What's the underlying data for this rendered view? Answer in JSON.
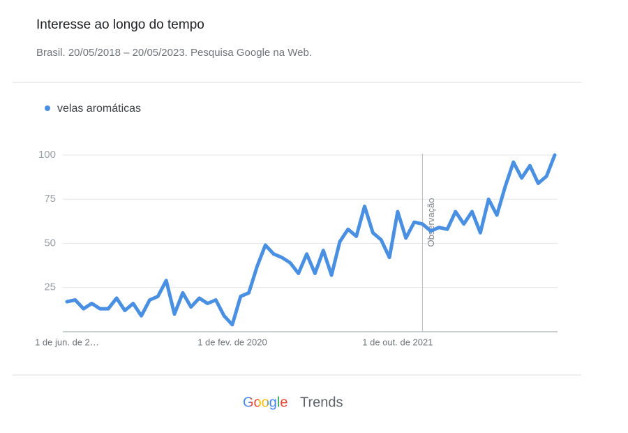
{
  "header": {
    "title": "Interesse ao longo do tempo",
    "subtitle": "Brasil. 20/05/2018 – 20/05/2023. Pesquisa Google na Web."
  },
  "chart_data": {
    "type": "line",
    "categories": [
      "1 de jun. de 2…",
      null,
      null,
      null,
      null,
      null,
      null,
      null,
      null,
      null,
      null,
      null,
      null,
      null,
      null,
      null,
      null,
      null,
      null,
      null,
      "1 de fev. de 2020",
      null,
      null,
      null,
      null,
      null,
      null,
      null,
      null,
      null,
      null,
      null,
      null,
      null,
      null,
      null,
      null,
      null,
      null,
      null,
      "1 de out. de 2021",
      null,
      null,
      null,
      null,
      null,
      null,
      null,
      null,
      null,
      null,
      null,
      null,
      null,
      null,
      null,
      null,
      null,
      null,
      null
    ],
    "series": [
      {
        "name": "velas aromáticas",
        "color": "#4a90e2",
        "values": [
          17,
          18,
          13,
          16,
          13,
          13,
          19,
          12,
          16,
          9,
          18,
          20,
          29,
          10,
          22,
          14,
          19,
          16,
          18,
          9,
          4,
          20,
          22,
          37,
          49,
          44,
          42,
          39,
          33,
          44,
          33,
          46,
          32,
          51,
          58,
          54,
          71,
          56,
          52,
          42,
          68,
          53,
          62,
          61,
          57,
          59,
          58,
          68,
          61,
          68,
          56,
          75,
          66,
          82,
          96,
          87,
          94,
          84,
          88,
          100
        ]
      }
    ],
    "ylim": [
      0,
      100
    ],
    "yticks": [
      25,
      50,
      75,
      100
    ],
    "grid": true,
    "legend": "top-left",
    "annotations": [
      {
        "text": "Observação",
        "category_index": 43
      }
    ]
  },
  "footer": {
    "brand": "Google",
    "product": "Trends"
  }
}
